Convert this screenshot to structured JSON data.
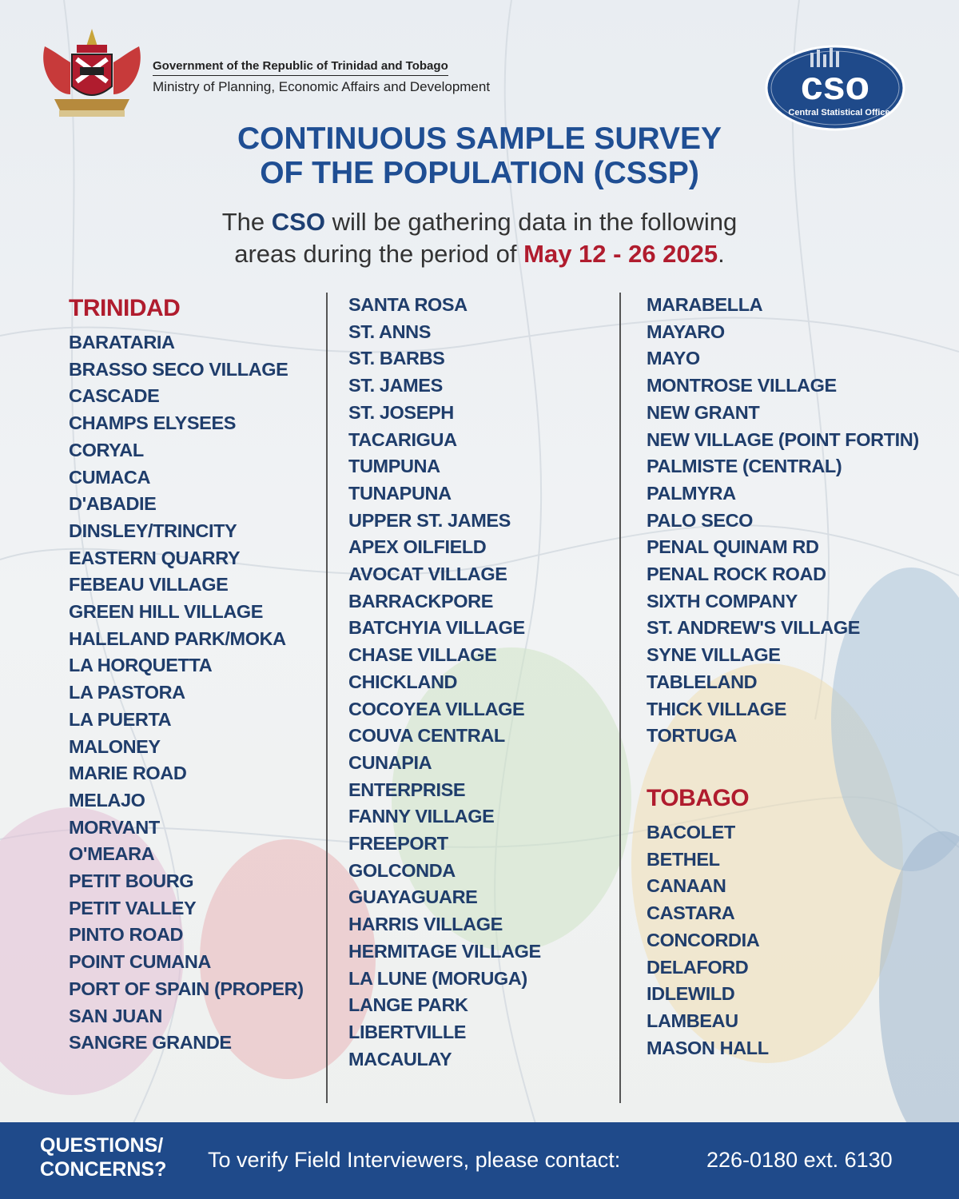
{
  "header": {
    "gov_line1": "Government of the Republic of Trinidad and Tobago",
    "gov_line2": "Ministry of Planning, Economic Affairs and Development",
    "logo_text": "cso",
    "logo_subtext": "Central Statistical Office"
  },
  "title": {
    "line1": "CONTINUOUS SAMPLE SURVEY",
    "line2": "OF THE POPULATION (CSSP)"
  },
  "intro": {
    "part1": "The ",
    "org": "CSO",
    "part2": " will be gathering data in the following",
    "part3": "areas during the period of ",
    "date": "May 12 - 26 2025",
    "part4": "."
  },
  "sections": {
    "trinidad": "TRINIDAD",
    "tobago": "TOBAGO"
  },
  "columns": {
    "col1": [
      "BARATARIA",
      "BRASSO SECO VILLAGE",
      "CASCADE",
      "CHAMPS ELYSEES",
      "CORYAL",
      "CUMACA",
      "D'ABADIE",
      "DINSLEY/TRINCITY",
      "EASTERN QUARRY",
      "FEBEAU VILLAGE",
      "GREEN HILL VILLAGE",
      "HALELAND PARK/MOKA",
      "LA HORQUETTA",
      "LA PASTORA",
      "LA PUERTA",
      "MALONEY",
      "MARIE ROAD",
      "MELAJO",
      "MORVANT",
      "O'MEARA",
      "PETIT BOURG",
      "PETIT VALLEY",
      "PINTO ROAD",
      "POINT CUMANA",
      "PORT OF SPAIN (PROPER)",
      "SAN JUAN",
      "SANGRE GRANDE"
    ],
    "col2": [
      "SANTA ROSA",
      "ST. ANNS",
      "ST. BARBS",
      "ST. JAMES",
      "ST. JOSEPH",
      "TACARIGUA",
      "TUMPUNA",
      "TUNAPUNA",
      "UPPER ST. JAMES",
      "APEX OILFIELD",
      "AVOCAT VILLAGE",
      "BARRACKPORE",
      "BATCHYIA VILLAGE",
      "CHASE VILLAGE",
      "CHICKLAND",
      "COCOYEA VILLAGE",
      "COUVA CENTRAL",
      "CUNAPIA",
      "ENTERPRISE",
      "FANNY VILLAGE",
      "FREEPORT",
      "GOLCONDA",
      "GUAYAGUARE",
      "HARRIS VILLAGE",
      "HERMITAGE VILLAGE",
      "LA LUNE (MORUGA)",
      "LANGE PARK",
      "LIBERTVILLE",
      "MACAULAY"
    ],
    "col3": [
      "MARABELLA",
      "MAYARO",
      "MAYO",
      "MONTROSE VILLAGE",
      "NEW GRANT",
      "NEW VILLAGE (POINT FORTIN)",
      "PALMISTE (CENTRAL)",
      "PALMYRA",
      "PALO SECO",
      "PENAL QUINAM RD",
      "PENAL ROCK ROAD",
      "SIXTH COMPANY",
      "ST. ANDREW'S VILLAGE",
      "SYNE VILLAGE",
      "TABLELAND",
      "THICK VILLAGE",
      "TORTUGA"
    ],
    "tobago": [
      "BACOLET",
      "BETHEL",
      "CANAAN",
      "CASTARA",
      "CONCORDIA",
      "DELAFORD",
      "IDLEWILD",
      "LAMBEAU",
      "MASON HALL"
    ]
  },
  "footer": {
    "questions_line1": "QUESTIONS/",
    "questions_line2": "CONCERNS?",
    "verify_text": "To verify Field Interviewers, please contact:",
    "phone": "226-0180 ext. 6130"
  },
  "colors": {
    "navy": "#1f3d6b",
    "title_blue": "#1f4e93",
    "accent_red": "#b01c2e",
    "footer_blue": "#1f4a8a"
  }
}
